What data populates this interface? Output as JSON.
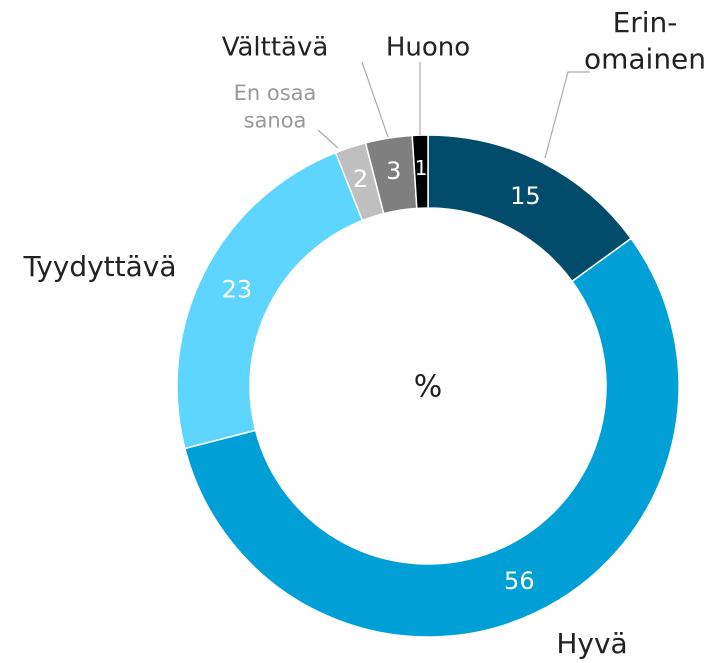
{
  "chart_data": {
    "type": "donut",
    "center_label": "%",
    "categories": [
      "Erin-\nomainen",
      "Hyvä",
      "Tyydyttävä",
      "En osaa\nsanoa",
      "Välttävä",
      "Huono"
    ],
    "values": [
      15,
      56,
      23,
      2,
      3,
      1
    ],
    "colors": [
      "#004c6a",
      "#009fd6",
      "#5dd5ff",
      "#bfbfbf",
      "#7f7f7f",
      "#000000"
    ]
  }
}
